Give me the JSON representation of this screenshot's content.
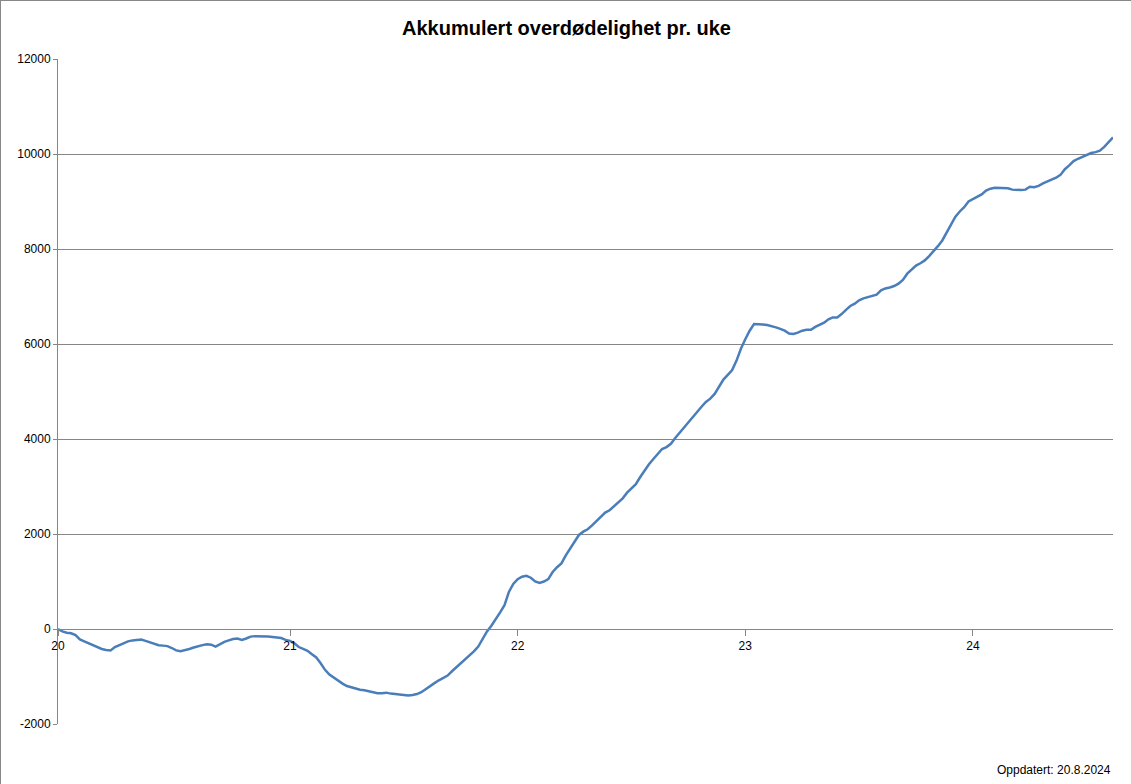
{
  "chart_data": {
    "type": "line",
    "title": "Akkumulert overdødelighet pr. uke",
    "annotations": [
      "Oppdatert: 20.8.2024"
    ],
    "color": "#4a7ebb",
    "grid": true,
    "ylim": [
      -2000,
      12000
    ],
    "yticks": [
      -2000,
      0,
      2000,
      4000,
      6000,
      8000,
      10000,
      12000
    ],
    "categories": [
      "20",
      null,
      null,
      null,
      null,
      null,
      null,
      null,
      null,
      null,
      null,
      null,
      null,
      null,
      null,
      null,
      null,
      null,
      null,
      null,
      null,
      null,
      null,
      null,
      null,
      null,
      null,
      null,
      null,
      null,
      null,
      null,
      null,
      null,
      null,
      null,
      null,
      null,
      null,
      null,
      null,
      null,
      null,
      null,
      null,
      null,
      null,
      null,
      null,
      null,
      null,
      null,
      null,
      "21",
      null,
      null,
      null,
      null,
      null,
      null,
      null,
      null,
      null,
      null,
      null,
      null,
      null,
      null,
      null,
      null,
      null,
      null,
      null,
      null,
      null,
      null,
      null,
      null,
      null,
      null,
      null,
      null,
      null,
      null,
      null,
      null,
      null,
      null,
      null,
      null,
      null,
      null,
      null,
      null,
      null,
      null,
      null,
      null,
      null,
      null,
      null,
      null,
      null,
      null,
      null,
      "22",
      null,
      null,
      null,
      null,
      null,
      null,
      null,
      null,
      null,
      null,
      null,
      null,
      null,
      null,
      null,
      null,
      null,
      null,
      null,
      null,
      null,
      null,
      null,
      null,
      null,
      null,
      null,
      null,
      null,
      null,
      null,
      null,
      null,
      null,
      null,
      null,
      null,
      null,
      null,
      null,
      null,
      null,
      null,
      null,
      null,
      null,
      null,
      null,
      null,
      null,
      null,
      "23",
      null,
      null,
      null,
      null,
      null,
      null,
      null,
      null,
      null,
      null,
      null,
      null,
      null,
      null,
      null,
      null,
      null,
      null,
      null,
      null,
      null,
      null,
      null,
      null,
      null,
      null,
      null,
      null,
      null,
      null,
      null,
      null,
      null,
      null,
      null,
      null,
      null,
      null,
      null,
      null,
      null,
      null,
      null,
      null,
      null,
      null,
      null,
      null,
      null,
      null,
      null,
      "24",
      null,
      null,
      null,
      null,
      null,
      null,
      null,
      null,
      null,
      null,
      null,
      null,
      null,
      null,
      null,
      null,
      null,
      null,
      null,
      null,
      null,
      null,
      null,
      null,
      null,
      null,
      null,
      null,
      null,
      null,
      null,
      null
    ],
    "values": [
      0,
      -50,
      -80,
      -90,
      -130,
      -220,
      -260,
      -300,
      -340,
      -380,
      -420,
      -440,
      -450,
      -380,
      -340,
      -300,
      -260,
      -240,
      -230,
      -220,
      -250,
      -280,
      -310,
      -340,
      -350,
      -360,
      -400,
      -450,
      -470,
      -450,
      -420,
      -390,
      -360,
      -340,
      -320,
      -330,
      -370,
      -320,
      -270,
      -240,
      -210,
      -200,
      -230,
      -200,
      -160,
      -150,
      -150,
      -150,
      -160,
      -170,
      -180,
      -190,
      -230,
      -250,
      -300,
      -380,
      -420,
      -460,
      -530,
      -600,
      -720,
      -860,
      -960,
      -1030,
      -1100,
      -1150,
      -1200,
      -1230,
      -1260,
      -1280,
      -1290,
      -1310,
      -1340,
      -1350,
      -1350,
      -1340,
      -1360,
      -1370,
      -1390,
      -1400,
      -1400,
      -1390,
      -1370,
      -1330,
      -1260,
      -1200,
      -1140,
      -1080,
      -1030,
      -980,
      -890,
      -810,
      -730,
      -650,
      -560,
      -470,
      -370,
      -200,
      -50,
      70,
      200,
      350,
      500,
      780,
      950,
      1050,
      1100,
      1120,
      1080,
      1000,
      970,
      1000,
      1050,
      1200,
      1300,
      1380,
      1550,
      1700,
      1850,
      1980,
      2050,
      2100,
      2180,
      2270,
      2380,
      2450,
      2500,
      2580,
      2660,
      2750,
      2870,
      2950,
      3050,
      3200,
      3350,
      3470,
      3580,
      3680,
      3790,
      3830,
      3900,
      4020,
      4130,
      4250,
      4370,
      4470,
      4580,
      4680,
      4780,
      4850,
      4950,
      5100,
      5250,
      5350,
      5450,
      5650,
      5900,
      6100,
      6280,
      6420,
      6420,
      6410,
      6400,
      6380,
      6350,
      6320,
      6280,
      6220,
      6210,
      6240,
      6280,
      6300,
      6300,
      6360,
      6400,
      6450,
      6520,
      6560,
      6560,
      6630,
      6720,
      6800,
      6850,
      6920,
      6960,
      6990,
      7010,
      7040,
      7130,
      7170,
      7190,
      7220,
      7270,
      7350,
      7480,
      7570,
      7650,
      7700,
      7760,
      7850,
      7950,
      8060,
      8180,
      8350,
      8530,
      8680,
      8790,
      8880,
      9000,
      9050,
      9100,
      9150,
      9230,
      9270,
      9290,
      9290,
      9290,
      9280,
      9250,
      9240,
      9240,
      9250,
      9310,
      9300,
      9330,
      9380,
      9420,
      9460,
      9500,
      9560,
      9680,
      9760,
      9850,
      9900,
      9940,
      9980,
      10020,
      10040,
      10070,
      10150,
      10240,
      10350
    ]
  }
}
